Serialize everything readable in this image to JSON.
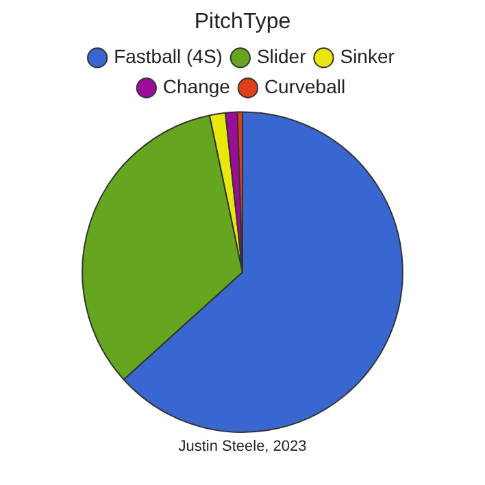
{
  "chart_data": {
    "type": "pie",
    "legend_title": "PitchType",
    "legend": "top",
    "categories": [
      "Fastball (4S)",
      "Slider",
      "Sinker",
      "Change",
      "Curveball"
    ],
    "values": [
      63.3,
      33.4,
      1.6,
      1.2,
      0.5
    ],
    "colors": [
      "#3a66d0",
      "#66a61e",
      "#e8e80c",
      "#9b0c9b",
      "#e0401a"
    ],
    "annotations": [
      "Justin Steele, 2023"
    ]
  }
}
